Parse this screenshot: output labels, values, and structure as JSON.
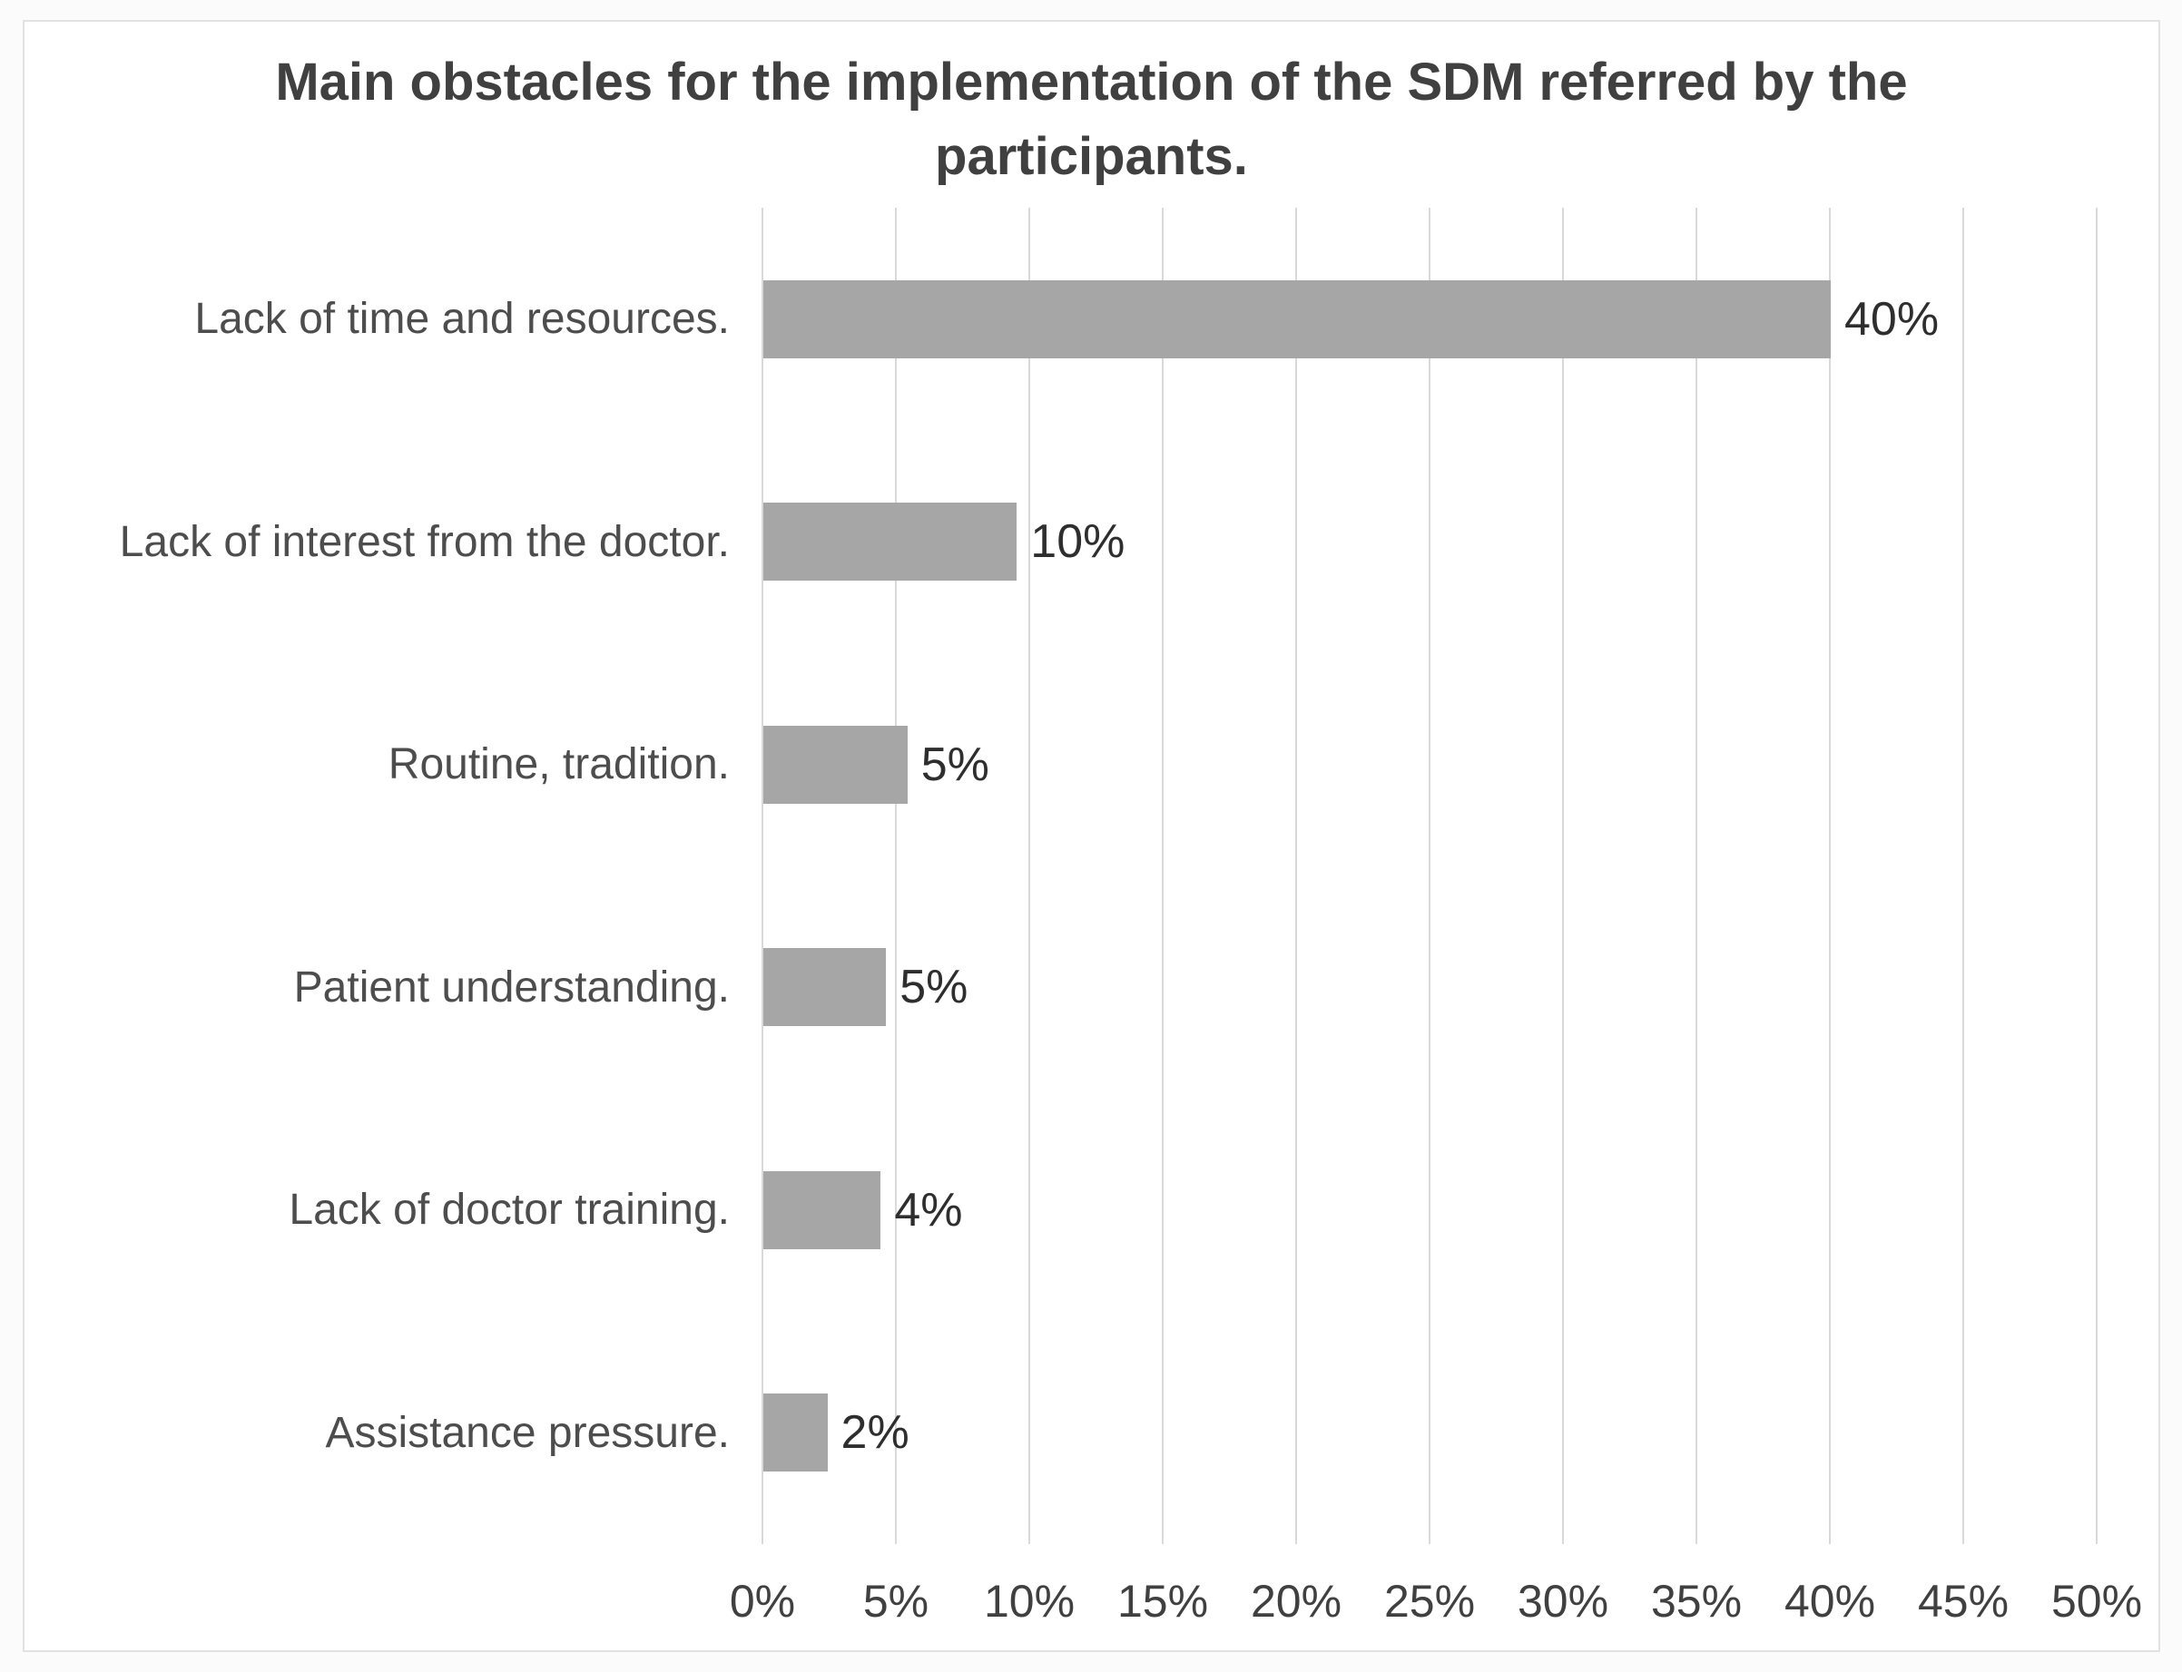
{
  "chart_data": {
    "type": "bar",
    "orientation": "horizontal",
    "title": "Main obstacles for the implementation of the SDM referred by the participants.",
    "categories": [
      "Lack of time and resources.",
      "Lack of interest from the doctor.",
      "Routine, tradition.",
      "Patient understanding.",
      "Lack of doctor training.",
      "Assistance pressure."
    ],
    "values": [
      40,
      10,
      5,
      5,
      4,
      2
    ],
    "data_labels": [
      "40%",
      "10%",
      "5%",
      "5%",
      "4%",
      "2%"
    ],
    "bar_lengths_pct": [
      40.0,
      9.5,
      5.4,
      4.6,
      4.4,
      2.4
    ],
    "xlabel": "",
    "ylabel": "",
    "x_axis": {
      "min": 0,
      "max": 50,
      "step": 5,
      "tick_labels": [
        "0%",
        "5%",
        "10%",
        "15%",
        "20%",
        "25%",
        "30%",
        "35%",
        "40%",
        "45%",
        "50%"
      ]
    },
    "grid": "vertical-only",
    "legend": "none",
    "colors": {
      "bar": "#a6a6a6",
      "gridline": "#d9d9d9",
      "title_text": "#404040",
      "category_text": "#4d4d4d",
      "tick_text": "#404040",
      "data_label_text": "#2e2e2e",
      "panel_border": "#e2e2e2",
      "panel_background": "#ffffff",
      "outer_background": "#fbfbfb"
    }
  }
}
